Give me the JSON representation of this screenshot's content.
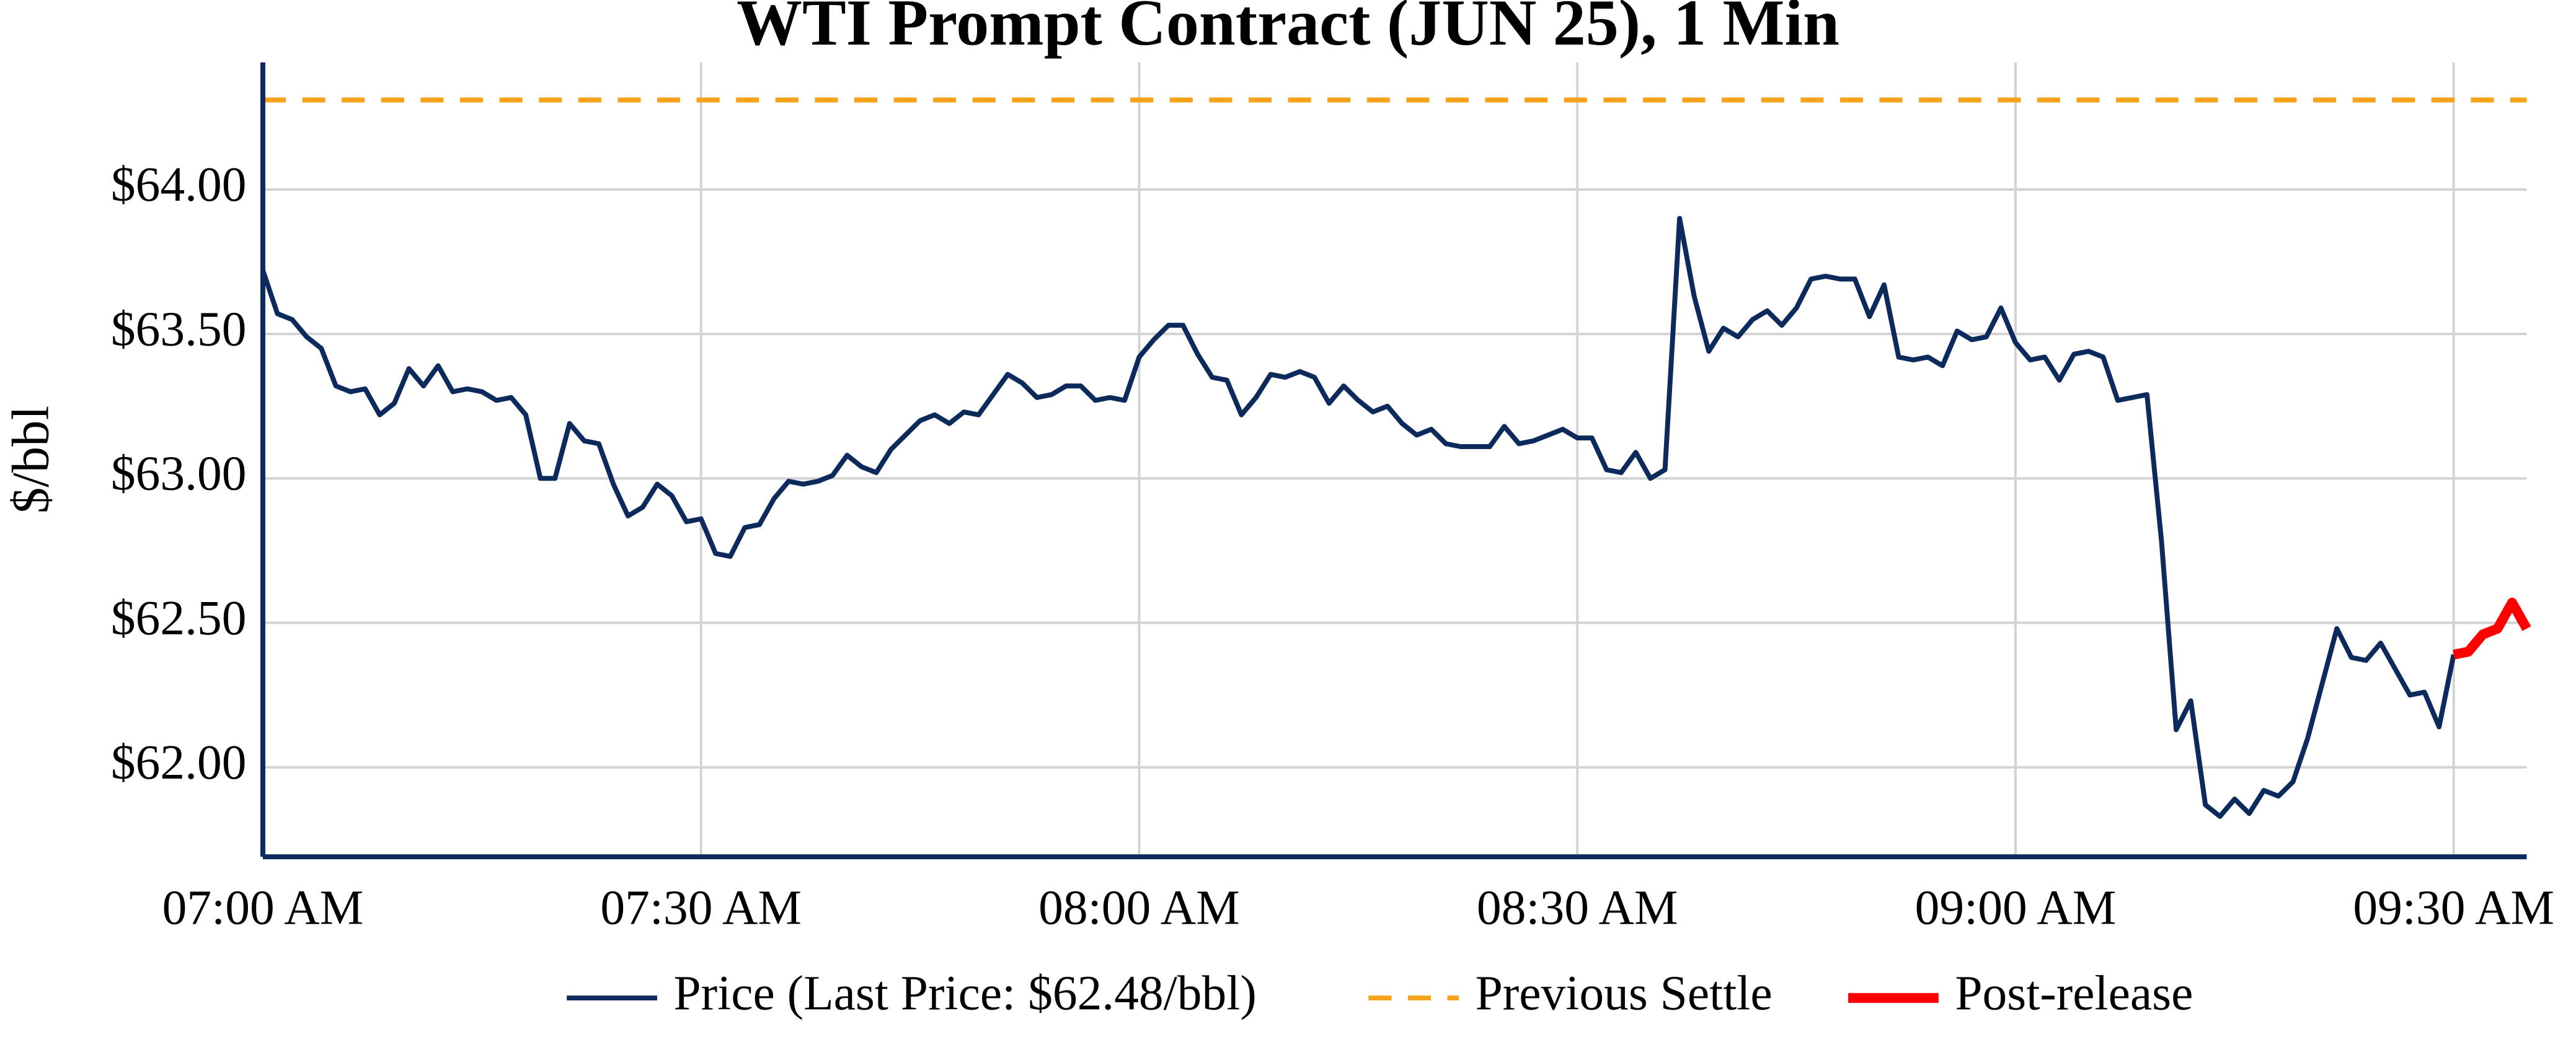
{
  "chart_data": {
    "type": "line",
    "title": "WTI Prompt Contract (JUN 25), 1 Min",
    "y_label": "$/bbl",
    "xlim": [
      "07:00 AM",
      "09:35 AM"
    ],
    "xticks": [
      "07:00 AM",
      "07:30 AM",
      "08:00 AM",
      "08:30 AM",
      "09:00 AM",
      "09:30 AM"
    ],
    "ylim": [
      61.69,
      64.44
    ],
    "yticks": [
      {
        "value": 62,
        "label": "$62.00"
      },
      {
        "value": 62.5,
        "label": "$62.50"
      },
      {
        "value": 63,
        "label": "$63.00"
      },
      {
        "value": 63.5,
        "label": "$63.50"
      },
      {
        "value": 64,
        "label": "$64.00"
      }
    ],
    "grid": true,
    "legend": "bottom",
    "series": [
      {
        "name": "Price (Last Price: $62.48/bbl)",
        "color": "#0d2a5c",
        "linewidth": 3,
        "x": [
          "07:00 AM",
          "07:01 AM",
          "07:02 AM",
          "07:03 AM",
          "07:04 AM",
          "07:05 AM",
          "07:06 AM",
          "07:07 AM",
          "07:08 AM",
          "07:09 AM",
          "07:10 AM",
          "07:11 AM",
          "07:12 AM",
          "07:13 AM",
          "07:14 AM",
          "07:15 AM",
          "07:16 AM",
          "07:17 AM",
          "07:18 AM",
          "07:19 AM",
          "07:20 AM",
          "07:21 AM",
          "07:22 AM",
          "07:23 AM",
          "07:24 AM",
          "07:25 AM",
          "07:26 AM",
          "07:27 AM",
          "07:28 AM",
          "07:29 AM",
          "07:30 AM",
          "07:31 AM",
          "07:32 AM",
          "07:33 AM",
          "07:34 AM",
          "07:35 AM",
          "07:36 AM",
          "07:37 AM",
          "07:38 AM",
          "07:39 AM",
          "07:40 AM",
          "07:41 AM",
          "07:42 AM",
          "07:43 AM",
          "07:44 AM",
          "07:45 AM",
          "07:46 AM",
          "07:47 AM",
          "07:48 AM",
          "07:49 AM",
          "07:50 AM",
          "07:51 AM",
          "07:52 AM",
          "07:53 AM",
          "07:54 AM",
          "07:55 AM",
          "07:56 AM",
          "07:57 AM",
          "07:58 AM",
          "07:59 AM",
          "08:00 AM",
          "08:01 AM",
          "08:02 AM",
          "08:03 AM",
          "08:04 AM",
          "08:05 AM",
          "08:06 AM",
          "08:07 AM",
          "08:08 AM",
          "08:09 AM",
          "08:10 AM",
          "08:11 AM",
          "08:12 AM",
          "08:13 AM",
          "08:14 AM",
          "08:15 AM",
          "08:16 AM",
          "08:17 AM",
          "08:18 AM",
          "08:19 AM",
          "08:20 AM",
          "08:21 AM",
          "08:22 AM",
          "08:23 AM",
          "08:24 AM",
          "08:25 AM",
          "08:26 AM",
          "08:27 AM",
          "08:28 AM",
          "08:29 AM",
          "08:30 AM",
          "08:31 AM",
          "08:32 AM",
          "08:33 AM",
          "08:34 AM",
          "08:35 AM",
          "08:36 AM",
          "08:37 AM",
          "08:38 AM",
          "08:39 AM",
          "08:40 AM",
          "08:41 AM",
          "08:42 AM",
          "08:43 AM",
          "08:44 AM",
          "08:45 AM",
          "08:46 AM",
          "08:47 AM",
          "08:48 AM",
          "08:49 AM",
          "08:50 AM",
          "08:51 AM",
          "08:52 AM",
          "08:53 AM",
          "08:54 AM",
          "08:55 AM",
          "08:56 AM",
          "08:57 AM",
          "08:58 AM",
          "08:59 AM",
          "09:00 AM",
          "09:01 AM",
          "09:02 AM",
          "09:03 AM",
          "09:04 AM",
          "09:05 AM",
          "09:06 AM",
          "09:07 AM",
          "09:08 AM",
          "09:09 AM",
          "09:10 AM",
          "09:11 AM",
          "09:12 AM",
          "09:13 AM",
          "09:14 AM",
          "09:15 AM",
          "09:16 AM",
          "09:17 AM",
          "09:18 AM",
          "09:19 AM",
          "09:20 AM",
          "09:21 AM",
          "09:22 AM",
          "09:23 AM",
          "09:24 AM",
          "09:25 AM",
          "09:26 AM",
          "09:27 AM",
          "09:28 AM",
          "09:29 AM",
          "09:30 AM"
        ],
        "values": [
          63.72,
          63.57,
          63.55,
          63.49,
          63.45,
          63.32,
          63.3,
          63.31,
          63.22,
          63.26,
          63.38,
          63.32,
          63.39,
          63.3,
          63.31,
          63.3,
          63.27,
          63.28,
          63.22,
          63.0,
          63.0,
          63.19,
          63.13,
          63.12,
          62.98,
          62.87,
          62.9,
          62.98,
          62.94,
          62.85,
          62.86,
          62.74,
          62.73,
          62.83,
          62.84,
          62.93,
          62.99,
          62.98,
          62.99,
          63.01,
          63.08,
          63.04,
          63.02,
          63.1,
          63.15,
          63.2,
          63.22,
          63.19,
          63.23,
          63.22,
          63.29,
          63.36,
          63.33,
          63.28,
          63.29,
          63.32,
          63.32,
          63.27,
          63.28,
          63.27,
          63.42,
          63.48,
          63.53,
          63.53,
          63.43,
          63.35,
          63.34,
          63.22,
          63.28,
          63.36,
          63.35,
          63.37,
          63.35,
          63.26,
          63.32,
          63.27,
          63.23,
          63.25,
          63.19,
          63.15,
          63.17,
          63.12,
          63.11,
          63.11,
          63.11,
          63.18,
          63.12,
          63.13,
          63.15,
          63.17,
          63.14,
          63.14,
          63.03,
          63.02,
          63.09,
          63.0,
          63.03,
          63.9,
          63.63,
          63.44,
          63.52,
          63.49,
          63.55,
          63.58,
          63.53,
          63.59,
          63.69,
          63.7,
          63.69,
          63.69,
          63.56,
          63.67,
          63.42,
          63.41,
          63.42,
          63.39,
          63.51,
          63.48,
          63.49,
          63.59,
          63.47,
          63.41,
          63.42,
          63.34,
          63.43,
          63.44,
          63.42,
          63.27,
          63.28,
          63.29,
          62.78,
          62.13,
          62.23,
          61.87,
          61.83,
          61.89,
          61.84,
          61.92,
          61.9,
          61.95,
          62.1,
          62.29,
          62.48,
          62.38,
          62.37,
          62.43,
          62.34,
          62.25,
          62.26,
          62.14,
          62.39
        ]
      },
      {
        "name": "Previous Settle",
        "color": "#f7a21b",
        "linewidth": 3,
        "dashed": true,
        "values": [
          64.31
        ]
      },
      {
        "name": "Post-release",
        "color": "#ff0000",
        "linewidth": 6,
        "x": [
          "09:30 AM",
          "09:31 AM",
          "09:32 AM",
          "09:33 AM",
          "09:34 AM",
          "09:35 AM"
        ],
        "values": [
          62.39,
          62.4,
          62.46,
          62.48,
          62.57,
          62.48
        ]
      }
    ]
  }
}
